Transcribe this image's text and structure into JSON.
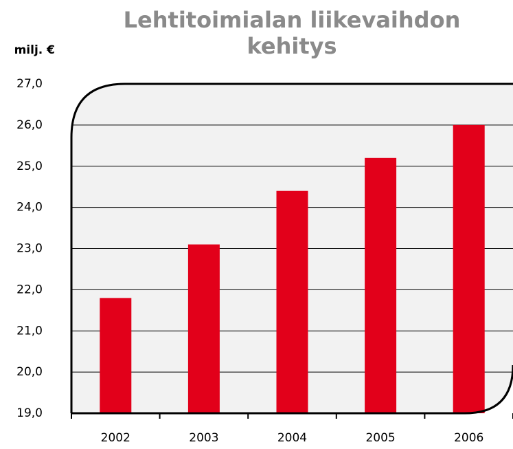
{
  "chart_data": {
    "type": "bar",
    "title": "Lehtitoimialan liikevaihdon kehitys",
    "y_label": "milj. €",
    "categories": [
      "2002",
      "2003",
      "2004",
      "2005",
      "2006"
    ],
    "values": [
      21.8,
      23.1,
      24.4,
      25.2,
      26.0
    ],
    "color": "#e2001a",
    "ylim": [
      19,
      27
    ],
    "yticks": [
      {
        "value": 19,
        "label": "19,0"
      },
      {
        "value": 20,
        "label": "20,0"
      },
      {
        "value": 21,
        "label": "21,0"
      },
      {
        "value": 22,
        "label": "22,0"
      },
      {
        "value": 23,
        "label": "23,0"
      },
      {
        "value": 24,
        "label": "24,0"
      },
      {
        "value": 25,
        "label": "25,0"
      },
      {
        "value": 26,
        "label": "26,0"
      },
      {
        "value": 27,
        "label": "27,0"
      }
    ],
    "grid": true
  }
}
